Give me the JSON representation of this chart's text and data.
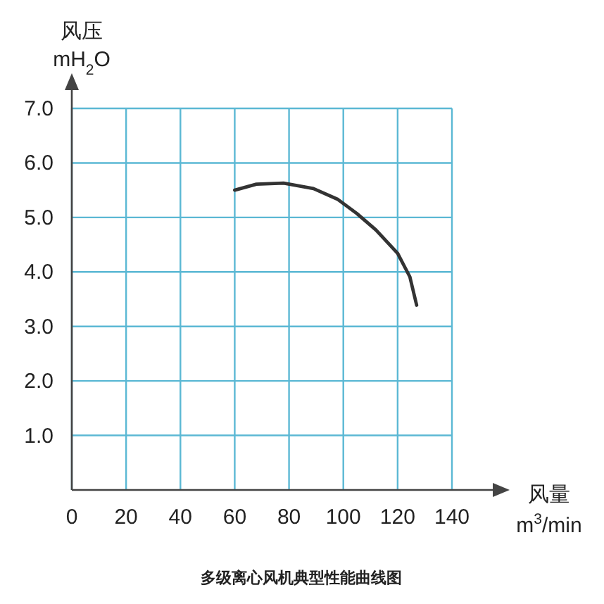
{
  "chart_data": {
    "type": "line",
    "title": "多级离心风机典型性能曲线图",
    "xlabel": "风量\nm$^{3}$/min",
    "ylabel": "风压\nmH$_{2}$O",
    "xlim": [
      0,
      140
    ],
    "xticks": [
      0,
      20,
      40,
      60,
      80,
      100,
      120,
      140
    ],
    "ylim": [
      0,
      7
    ],
    "yticks": [
      {
        "value": 1,
        "label": "1.0"
      },
      {
        "value": 2,
        "label": "2.0"
      },
      {
        "value": 3,
        "label": "3.0"
      },
      {
        "value": 4,
        "label": "4.0"
      },
      {
        "value": 5,
        "label": "5.0"
      },
      {
        "value": 6,
        "label": "6.0"
      },
      {
        "value": 7,
        "label": "7.0"
      }
    ],
    "grid": true,
    "marker": "none",
    "line_style": "solid",
    "series": [
      {
        "color": "#333333",
        "x": [
          60,
          68,
          78,
          89,
          98,
          105,
          112,
          120,
          124.5,
          127
        ],
        "values": [
          5.5,
          5.61,
          5.63,
          5.53,
          5.33,
          5.07,
          4.77,
          4.34,
          3.91,
          3.39
        ]
      }
    ]
  }
}
